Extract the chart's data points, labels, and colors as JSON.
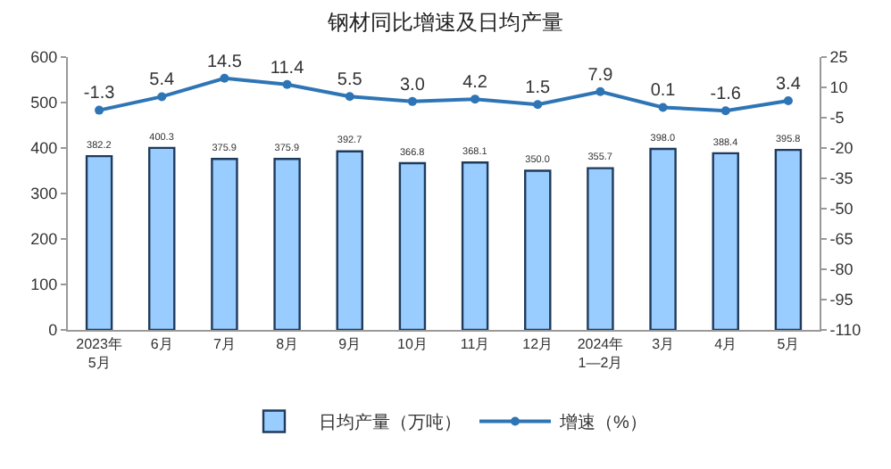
{
  "chart_data": {
    "type": "bar",
    "title": "钢材同比增速及日均产量",
    "categories": [
      "2023年\n5月",
      "6月",
      "7月",
      "8月",
      "9月",
      "10月",
      "11月",
      "12月",
      "2024年\n1—2月",
      "3月",
      "4月",
      "5月"
    ],
    "series": [
      {
        "name": "日均产量（万吨）",
        "color": "#99ccff",
        "values": [
          382.2,
          400.3,
          375.9,
          375.9,
          392.7,
          366.8,
          368.1,
          350.0,
          355.7,
          398.0,
          388.4,
          395.8
        ],
        "value_labels": [
          "382.2",
          "400.3",
          "375.9",
          "375.9",
          "392.7",
          "366.8",
          "368.1",
          "350.0",
          "355.7",
          "398.0",
          "388.4",
          "395.8"
        ]
      },
      {
        "name": "增速（%）",
        "type": "line",
        "axis": "y2",
        "color": "#2e75b6",
        "values": [
          -1.3,
          5.4,
          14.5,
          11.4,
          5.5,
          3.0,
          4.2,
          1.5,
          7.9,
          0.1,
          -1.6,
          3.4
        ],
        "value_labels": [
          "-1.3",
          "5.4",
          "14.5",
          "11.4",
          "5.5",
          "3.0",
          "4.2",
          "1.5",
          "7.9",
          "0.1",
          "-1.6",
          "3.4"
        ]
      }
    ],
    "ylim": [
      0,
      600
    ],
    "yticks": [
      0,
      100,
      200,
      300,
      400,
      500,
      600
    ],
    "y2lim": [
      -110,
      25
    ],
    "y2ticks": [
      -110,
      -95,
      -80,
      -65,
      -50,
      -35,
      -20,
      -5,
      10,
      25
    ],
    "marker": "circle",
    "line_style": "solid",
    "legend": "bottom",
    "grid": false
  }
}
